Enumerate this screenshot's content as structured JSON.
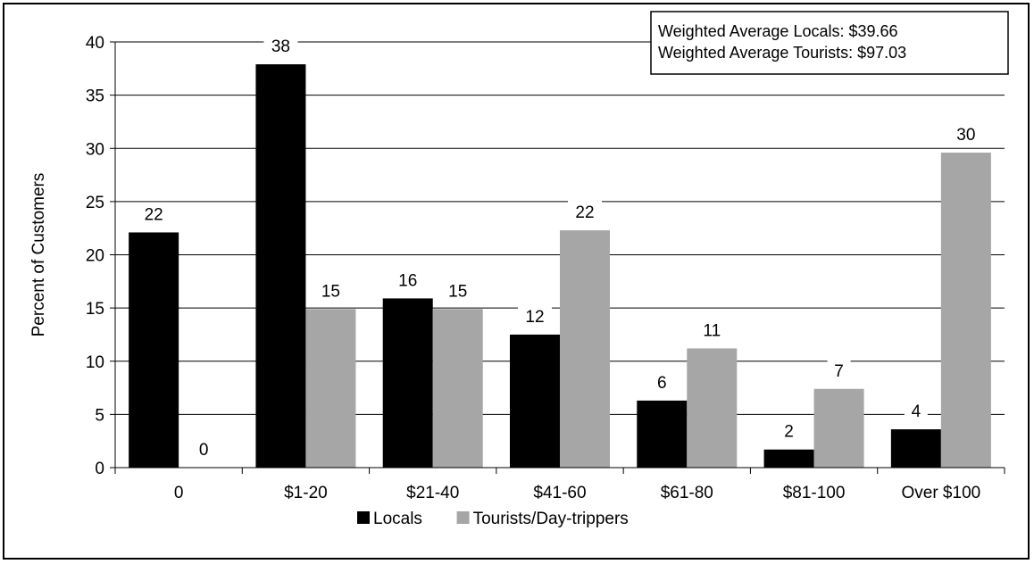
{
  "chart_data": {
    "type": "bar",
    "title": "",
    "xlabel": "",
    "ylabel": "Percent of Customers",
    "ylim": [
      0,
      40
    ],
    "yticks": [
      0,
      5,
      10,
      15,
      20,
      25,
      30,
      35,
      40
    ],
    "grid": true,
    "legend_placement": "bottom",
    "categories": [
      "0",
      "$1-20",
      "$21-40",
      "$41-60",
      "$61-80",
      "$81-100",
      "Over $100"
    ],
    "series": [
      {
        "name": "Locals",
        "color": "#000000",
        "values": [
          22.1,
          37.9,
          15.9,
          12.5,
          6.3,
          1.7,
          3.6
        ],
        "labels": [
          "22",
          "38",
          "16",
          "12",
          "6",
          "2",
          "4"
        ]
      },
      {
        "name": "Tourists/Day-trippers",
        "color": "#a6a6a6",
        "values": [
          0,
          14.9,
          14.9,
          22.3,
          11.2,
          7.4,
          29.6
        ],
        "labels": [
          "0",
          "15",
          "15",
          "22",
          "11",
          "7",
          "30"
        ]
      }
    ],
    "annotation": {
      "lines": [
        "Weighted Average Locals: $39.66",
        "Weighted Average Tourists: $97.03"
      ],
      "placement": "top-right"
    }
  }
}
